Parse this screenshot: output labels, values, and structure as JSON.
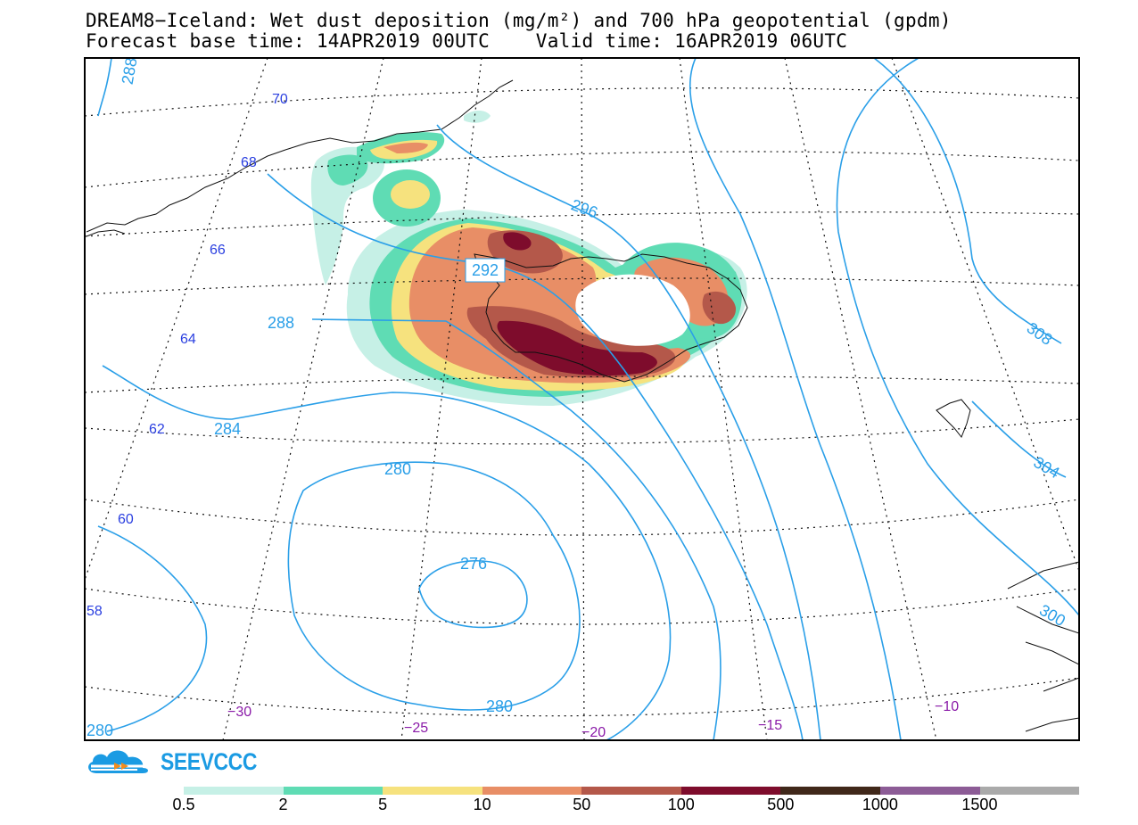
{
  "title_line1": "DREAM8−Iceland: Wet dust deposition (mg/m²) and 700 hPa geopotential (gpdm)",
  "title_line2": "Forecast base time: 14APR2019 00UTC    Valid time: 16APR2019 06UTC",
  "logo_text": "SEEVCCC",
  "latitude_labels": [
    "70",
    "68",
    "66",
    "64",
    "62",
    "60",
    "58"
  ],
  "longitude_labels": [
    "−30",
    "−25",
    "−20",
    "−15",
    "−10"
  ],
  "contour_labels": [
    "288",
    "296",
    "292",
    "288",
    "284",
    "280",
    "276",
    "280",
    "308",
    "304",
    "300",
    "280"
  ],
  "legend": {
    "ticks": [
      "0.5",
      "2",
      "5",
      "10",
      "50",
      "100",
      "500",
      "1000",
      "1500"
    ],
    "colors": [
      "#c6f0e6",
      "#5fdcb4",
      "#f6e27e",
      "#e88e66",
      "#b4584a",
      "#7e0c2c",
      "#40281a",
      "#8c5c96",
      "#aaaaaa"
    ]
  },
  "colors": {
    "contour": "#2a9fe8",
    "latitude_label": "#2a3fe0",
    "longitude_label": "#8a1aa8",
    "logo": "#1b9be3"
  }
}
